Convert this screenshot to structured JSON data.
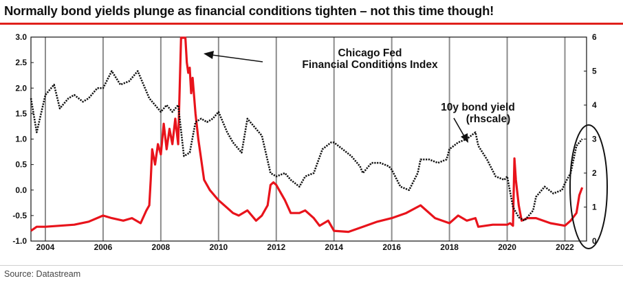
{
  "title": "Normally bond yields plunge as financial conditions tighten – not this time though!",
  "source": "Source: Datastream",
  "chart_data": {
    "type": "line",
    "x_ticks": [
      "2004",
      "2006",
      "2008",
      "2010",
      "2012",
      "2014",
      "2016",
      "2018",
      "2020",
      "2022"
    ],
    "left_axis": {
      "ticks": [
        "-1.0",
        "-0.5",
        "0.0",
        "0.5",
        "1.0",
        "1.5",
        "2.0",
        "2.5",
        "3.0"
      ],
      "ylim": [
        -1.0,
        3.0
      ]
    },
    "right_axis": {
      "ticks": [
        "0",
        "1",
        "2",
        "3",
        "4",
        "5",
        "6"
      ],
      "ylim": [
        0,
        6
      ]
    },
    "xlim": [
      2003.5,
      2022.75
    ],
    "grid": "vertical",
    "annotations": {
      "nfci_label_line1": "Chicago Fed",
      "nfci_label_line2": "Financial Conditions Index",
      "yield_label_line1": "10y bond yield",
      "yield_label_line2": "(rhscale)"
    },
    "colors": {
      "nfci": "#e8131b",
      "yield": "#111111",
      "grid": "#8c8c8c"
    },
    "series": [
      {
        "axis": "left",
        "x": [
          2003.5,
          2003.7,
          2004.0,
          2004.5,
          2005.0,
          2005.5,
          2006.0,
          2006.3,
          2006.7,
          2007.0,
          2007.3,
          2007.5,
          2007.6,
          2007.65,
          2007.7,
          2007.8,
          2007.9,
          2008.0,
          2008.1,
          2008.2,
          2008.3,
          2008.4,
          2008.5,
          2008.6,
          2008.7,
          2008.75,
          2008.8,
          2008.85,
          2008.9,
          2008.95,
          2009.0,
          2009.05,
          2009.1,
          2009.2,
          2009.3,
          2009.5,
          2009.7,
          2010.0,
          2010.3,
          2010.5,
          2010.7,
          2011.0,
          2011.3,
          2011.5,
          2011.7,
          2011.8,
          2011.9,
          2012.0,
          2012.1,
          2012.3,
          2012.5,
          2012.8,
          2013.0,
          2013.3,
          2013.5,
          2013.8,
          2014.0,
          2014.5,
          2015.0,
          2015.5,
          2016.0,
          2016.5,
          2017.0,
          2017.5,
          2018.0,
          2018.3,
          2018.6,
          2018.9,
          2019.0,
          2019.5,
          2020.0,
          2020.1,
          2020.2,
          2020.25,
          2020.3,
          2020.4,
          2020.5,
          2020.7,
          2021.0,
          2021.5,
          2022.0,
          2022.2,
          2022.4,
          2022.5,
          2022.6
        ],
        "values": [
          -0.8,
          -0.72,
          -0.72,
          -0.7,
          -0.68,
          -0.62,
          -0.5,
          -0.55,
          -0.6,
          -0.55,
          -0.65,
          -0.4,
          -0.3,
          0.2,
          0.8,
          0.5,
          0.9,
          0.7,
          1.3,
          0.8,
          1.2,
          0.9,
          1.4,
          0.9,
          3.0,
          3.8,
          3.0,
          3.5,
          2.5,
          2.3,
          2.4,
          1.9,
          2.2,
          1.5,
          1.0,
          0.2,
          0.0,
          -0.2,
          -0.35,
          -0.45,
          -0.5,
          -0.4,
          -0.6,
          -0.5,
          -0.3,
          0.1,
          0.15,
          0.1,
          0.0,
          -0.2,
          -0.45,
          -0.45,
          -0.4,
          -0.55,
          -0.7,
          -0.6,
          -0.8,
          -0.82,
          -0.72,
          -0.62,
          -0.55,
          -0.45,
          -0.3,
          -0.55,
          -0.65,
          -0.5,
          -0.6,
          -0.55,
          -0.72,
          -0.68,
          -0.68,
          -0.65,
          -0.7,
          0.62,
          0.2,
          -0.3,
          -0.6,
          -0.55,
          -0.55,
          -0.65,
          -0.7,
          -0.6,
          -0.45,
          -0.1,
          0.05
        ]
      },
      {
        "name": "10y bond yield",
        "axis": "right",
        "x": [
          2003.5,
          2003.7,
          2004.0,
          2004.3,
          2004.5,
          2004.8,
          2005.0,
          2005.3,
          2005.5,
          2005.8,
          2006.0,
          2006.3,
          2006.6,
          2006.9,
          2007.0,
          2007.2,
          2007.4,
          2007.6,
          2007.8,
          2008.0,
          2008.2,
          2008.4,
          2008.6,
          2008.8,
          2009.0,
          2009.2,
          2009.4,
          2009.6,
          2009.8,
          2010.0,
          2010.3,
          2010.5,
          2010.8,
          2011.0,
          2011.3,
          2011.5,
          2011.8,
          2012.0,
          2012.3,
          2012.5,
          2012.8,
          2013.0,
          2013.3,
          2013.6,
          2013.9,
          2014.0,
          2014.3,
          2014.6,
          2014.9,
          2015.0,
          2015.3,
          2015.6,
          2015.9,
          2016.0,
          2016.3,
          2016.6,
          2016.9,
          2017.0,
          2017.3,
          2017.6,
          2017.9,
          2018.0,
          2018.3,
          2018.6,
          2018.9,
          2019.0,
          2019.3,
          2019.6,
          2019.9,
          2020.0,
          2020.2,
          2020.4,
          2020.6,
          2020.9,
          2021.0,
          2021.3,
          2021.6,
          2021.9,
          2022.0,
          2022.2,
          2022.4,
          2022.6
        ],
        "values": [
          4.2,
          3.2,
          4.3,
          4.6,
          3.9,
          4.2,
          4.3,
          4.1,
          4.2,
          4.5,
          4.5,
          5.0,
          4.6,
          4.7,
          4.8,
          5.0,
          4.6,
          4.2,
          4.0,
          3.8,
          4.0,
          3.8,
          4.0,
          2.5,
          2.6,
          3.5,
          3.6,
          3.5,
          3.6,
          3.8,
          3.2,
          2.9,
          2.6,
          3.6,
          3.3,
          3.1,
          2.0,
          1.9,
          2.0,
          1.8,
          1.6,
          1.9,
          2.0,
          2.7,
          2.9,
          2.9,
          2.7,
          2.5,
          2.2,
          2.0,
          2.3,
          2.3,
          2.2,
          2.1,
          1.6,
          1.5,
          2.0,
          2.4,
          2.4,
          2.3,
          2.4,
          2.7,
          2.9,
          3.0,
          3.2,
          2.8,
          2.4,
          1.9,
          1.8,
          1.9,
          1.0,
          0.7,
          0.6,
          0.9,
          1.3,
          1.6,
          1.4,
          1.5,
          1.7,
          2.0,
          2.8,
          3.0
        ]
      }
    ]
  }
}
